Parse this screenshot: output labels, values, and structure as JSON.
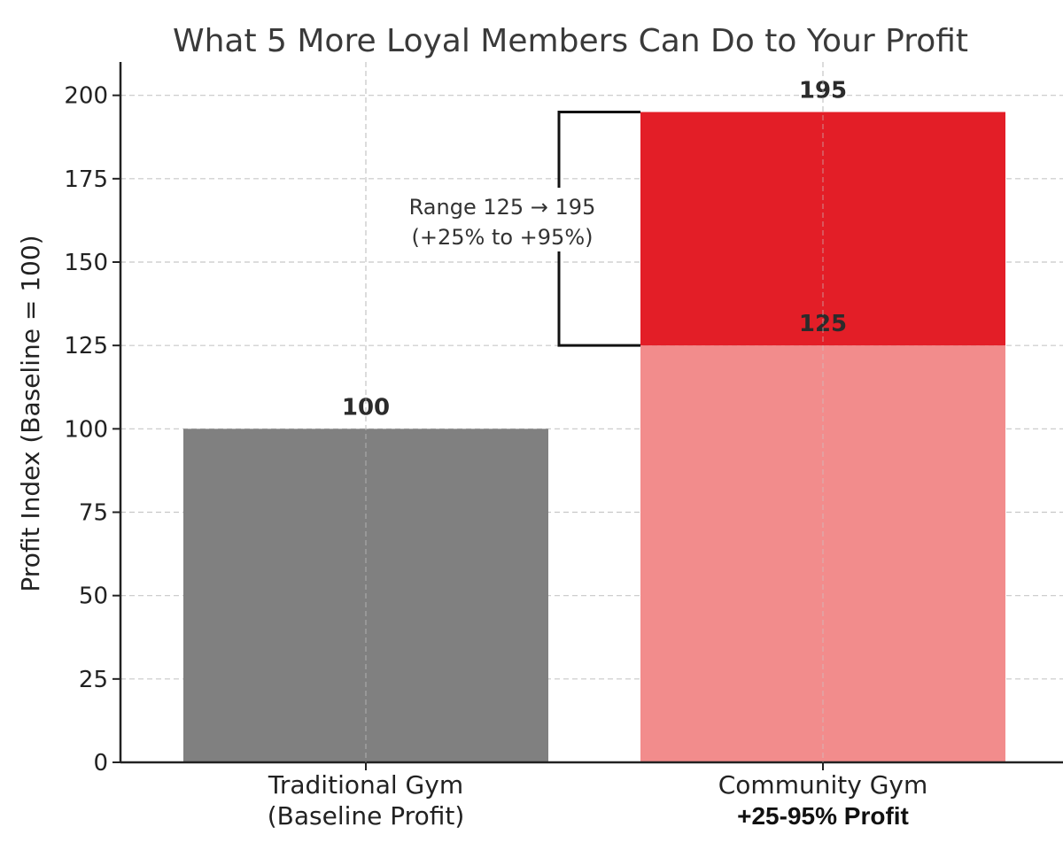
{
  "chart_data": {
    "type": "bar",
    "title": "What 5 More Loyal Members Can Do to Your Profit",
    "ylabel": "Profit Index (Baseline = 100)",
    "xlabel": "",
    "ylim": [
      0,
      210
    ],
    "yticks": [
      0,
      25,
      50,
      75,
      100,
      125,
      150,
      175,
      200
    ],
    "grid": true,
    "categories": [
      {
        "line1": "Traditional Gym",
        "line2": "(Baseline Profit)",
        "line2_bold": false
      },
      {
        "line1": "Community Gym",
        "line2": "+25-95% Profit",
        "line2_bold": true
      }
    ],
    "bars": [
      {
        "category_index": 0,
        "base": 0,
        "top": 100,
        "color": "#808080",
        "label": "100"
      },
      {
        "category_index": 1,
        "base": 0,
        "top": 125,
        "color": "#f28c8c",
        "label": "125"
      },
      {
        "category_index": 1,
        "base": 125,
        "top": 195,
        "color": "#e31e27",
        "label": "195"
      }
    ],
    "annotation": {
      "lines": [
        "Range 125 → 195",
        "(+25% to +95%)"
      ],
      "range": [
        125,
        195
      ],
      "category_index": 1
    }
  }
}
